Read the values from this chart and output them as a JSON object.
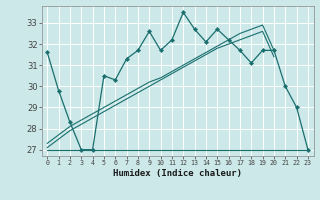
{
  "title": "",
  "xlabel": "Humidex (Indice chaleur)",
  "x_ticks": [
    0,
    1,
    2,
    3,
    4,
    5,
    6,
    7,
    8,
    9,
    10,
    11,
    12,
    13,
    14,
    15,
    16,
    17,
    18,
    19,
    20,
    21,
    22,
    23
  ],
  "y_ticks": [
    27,
    28,
    29,
    30,
    31,
    32,
    33
  ],
  "ylim": [
    26.7,
    33.8
  ],
  "xlim": [
    -0.5,
    23.5
  ],
  "bg_color": "#cce8e8",
  "grid_color": "#ffffff",
  "line_color": "#1a6e6e",
  "series1_x": [
    0,
    1,
    2,
    3,
    4,
    5,
    6,
    7,
    8,
    9,
    10,
    11,
    12,
    13,
    14,
    15,
    16,
    17,
    18,
    19,
    20,
    21,
    22,
    23
  ],
  "series1_y": [
    31.6,
    29.8,
    28.3,
    27.0,
    27.0,
    30.5,
    30.3,
    31.3,
    31.7,
    32.6,
    31.7,
    32.2,
    33.5,
    32.7,
    32.1,
    32.7,
    32.2,
    31.7,
    31.1,
    31.7,
    31.7,
    30.0,
    29.0,
    27.0
  ],
  "series2_x": [
    0,
    3,
    4,
    5,
    6,
    7,
    8,
    9,
    10,
    11,
    12,
    13,
    14,
    15,
    16,
    17,
    18,
    19,
    20,
    21,
    22,
    23
  ],
  "series2_y": [
    27.0,
    27.0,
    27.0,
    27.0,
    27.0,
    27.0,
    27.0,
    27.0,
    27.0,
    27.0,
    27.0,
    27.0,
    27.0,
    27.0,
    27.0,
    27.0,
    27.0,
    27.0,
    27.0,
    27.0,
    27.0,
    27.0
  ],
  "series3_x": [
    0,
    1,
    2,
    3,
    4,
    5,
    6,
    7,
    8,
    9,
    10,
    11,
    12,
    13,
    14,
    15,
    16,
    17,
    18,
    19,
    20
  ],
  "series3_y": [
    27.3,
    27.7,
    28.1,
    28.4,
    28.7,
    29.0,
    29.3,
    29.6,
    29.9,
    30.2,
    30.4,
    30.7,
    31.0,
    31.3,
    31.6,
    31.9,
    32.2,
    32.5,
    32.7,
    32.9,
    31.7
  ],
  "series4_x": [
    0,
    1,
    2,
    3,
    4,
    5,
    6,
    7,
    8,
    9,
    10,
    11,
    12,
    13,
    14,
    15,
    16,
    17,
    18,
    19,
    20
  ],
  "series4_y": [
    27.1,
    27.5,
    27.9,
    28.2,
    28.5,
    28.8,
    29.1,
    29.4,
    29.7,
    30.0,
    30.3,
    30.6,
    30.9,
    31.2,
    31.5,
    31.8,
    32.0,
    32.2,
    32.4,
    32.6,
    31.4
  ]
}
